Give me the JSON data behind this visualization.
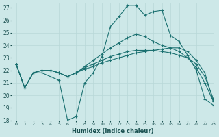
{
  "title": "",
  "xlabel": "Humidex (Indice chaleur)",
  "bg_color": "#cde8e8",
  "grid_color": "#b8d8d8",
  "line_color": "#1a7070",
  "xlim": [
    -0.5,
    23
  ],
  "ylim": [
    18,
    27.4
  ],
  "xticks": [
    0,
    1,
    2,
    3,
    4,
    5,
    6,
    7,
    8,
    9,
    10,
    11,
    12,
    13,
    14,
    15,
    16,
    17,
    18,
    19,
    20,
    21,
    22,
    23
  ],
  "yticks": [
    18,
    19,
    20,
    21,
    22,
    23,
    24,
    25,
    26,
    27
  ],
  "series": [
    [
      22.5,
      20.6,
      21.8,
      21.8,
      21.5,
      21.2,
      18.0,
      18.3,
      21.0,
      21.8,
      23.1,
      25.5,
      26.3,
      27.2,
      27.2,
      26.4,
      26.7,
      26.8,
      24.8,
      24.3,
      23.2,
      22.0,
      19.7,
      19.2
    ],
    [
      22.5,
      20.6,
      21.8,
      22.0,
      22.0,
      21.8,
      21.5,
      21.8,
      22.3,
      22.8,
      23.3,
      23.8,
      24.2,
      24.6,
      24.9,
      24.7,
      24.3,
      24.0,
      23.8,
      23.5,
      23.0,
      22.2,
      21.0,
      19.5
    ],
    [
      22.5,
      20.6,
      21.8,
      22.0,
      22.0,
      21.8,
      21.5,
      21.8,
      22.2,
      22.5,
      22.8,
      23.1,
      23.3,
      23.5,
      23.6,
      23.6,
      23.6,
      23.5,
      23.4,
      23.2,
      23.0,
      22.5,
      21.5,
      19.7
    ],
    [
      22.5,
      20.6,
      21.8,
      22.0,
      22.0,
      21.8,
      21.5,
      21.8,
      22.1,
      22.3,
      22.6,
      22.8,
      23.0,
      23.2,
      23.4,
      23.5,
      23.6,
      23.7,
      23.8,
      23.8,
      23.5,
      22.8,
      21.8,
      19.5
    ]
  ]
}
